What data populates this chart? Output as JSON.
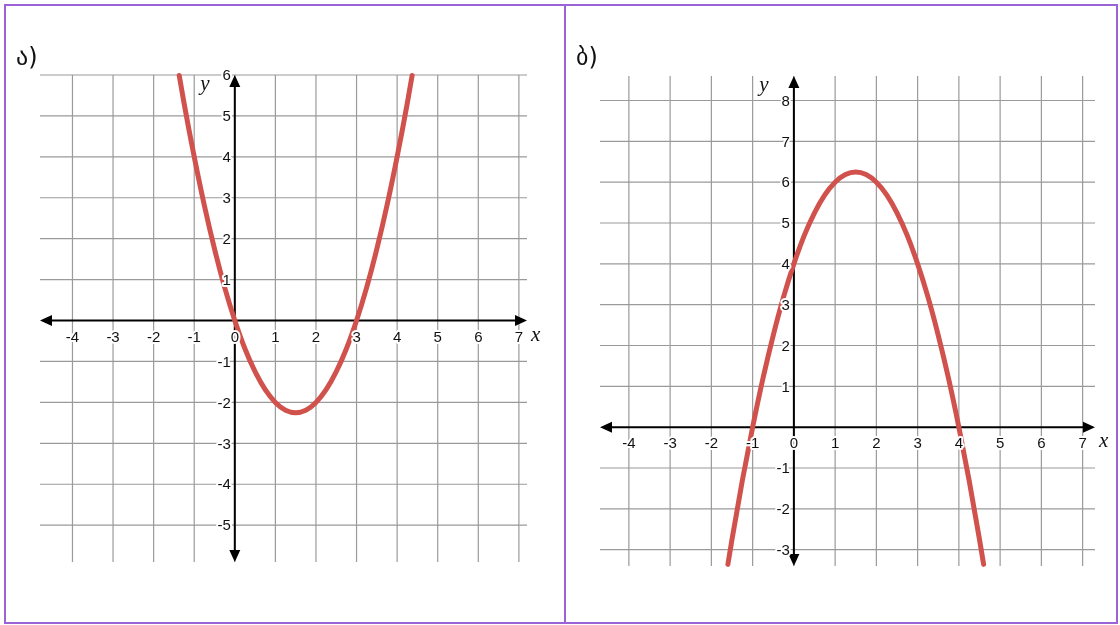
{
  "chart_data": [
    {
      "type": "line",
      "title": "ა)",
      "xlabel": "x",
      "ylabel": "y",
      "xlim": [
        -4.8,
        7.2
      ],
      "ylim": [
        -5.9,
        6
      ],
      "xticks": [
        -4,
        -3,
        -2,
        -1,
        0,
        1,
        2,
        3,
        4,
        5,
        6,
        7
      ],
      "yticks": [
        -5,
        -4,
        -3,
        -2,
        -1,
        1,
        2,
        3,
        4,
        5,
        6
      ],
      "grid": true,
      "x": [
        -1.37,
        -1.25,
        -1,
        -0.75,
        -0.5,
        -0.25,
        0,
        0.25,
        0.5,
        0.75,
        1,
        1.25,
        1.5,
        1.75,
        2,
        2.25,
        2.5,
        2.75,
        3,
        3.25,
        3.5,
        3.75,
        4,
        4.25,
        4.37
      ],
      "series": [
        {
          "color": "#d1524c",
          "values": [
            5.99,
            5.31,
            4,
            2.81,
            1.75,
            0.81,
            0,
            -0.69,
            -1.25,
            -1.69,
            -2,
            -2.19,
            -2.25,
            -2.19,
            -2,
            -1.69,
            -1.25,
            -0.69,
            0,
            0.81,
            1.75,
            2.81,
            4,
            5.31,
            5.99
          ]
        }
      ]
    },
    {
      "type": "line",
      "title": "ბ)",
      "xlabel": "x",
      "ylabel": "y",
      "xlim": [
        -4.7,
        7.3
      ],
      "ylim": [
        -3.4,
        8.6
      ],
      "xticks": [
        -4,
        -3,
        -2,
        -1,
        0,
        1,
        2,
        3,
        4,
        5,
        6,
        7
      ],
      "yticks": [
        -3,
        -2,
        -1,
        1,
        2,
        3,
        4,
        5,
        6,
        7,
        8
      ],
      "grid": true,
      "x": [
        -1.6,
        -1.5,
        -1.25,
        -1,
        -0.75,
        -0.5,
        -0.25,
        0,
        0.25,
        0.5,
        0.75,
        1,
        1.25,
        1.5,
        1.75,
        2,
        2.25,
        2.5,
        2.75,
        3,
        3.25,
        3.5,
        3.75,
        4,
        4.25,
        4.5,
        4.6
      ],
      "series": [
        {
          "color": "#d1524c",
          "values": [
            -3.36,
            -2.75,
            -1.31,
            0,
            1.19,
            2.25,
            3.19,
            4,
            4.69,
            5.25,
            5.69,
            6,
            6.19,
            6.25,
            6.19,
            6,
            5.69,
            5.25,
            4.69,
            4,
            3.19,
            2.25,
            1.19,
            0,
            -1.31,
            -2.75,
            -3.36
          ]
        }
      ]
    }
  ]
}
